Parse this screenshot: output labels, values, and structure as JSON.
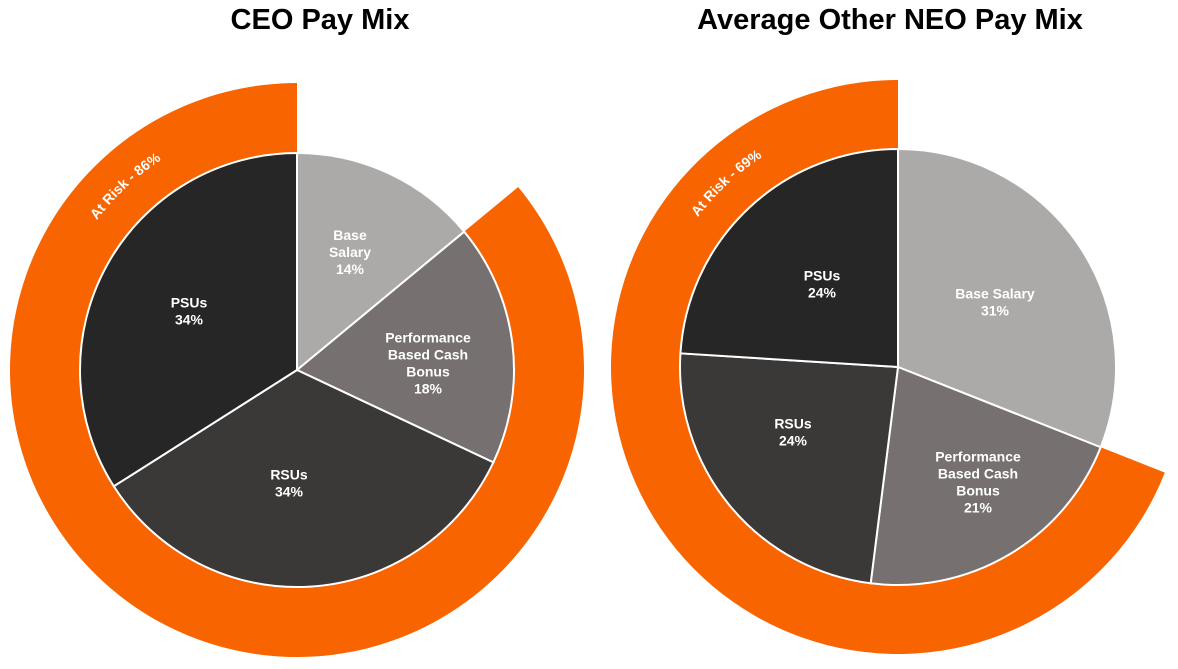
{
  "chart_data": [
    {
      "type": "pie",
      "title": "CEO Pay Mix",
      "slices": [
        {
          "label": "Base Salary",
          "label_lines": [
            "Base",
            "Salary",
            "14%"
          ],
          "value": 14,
          "color": "#acaaa9"
        },
        {
          "label": "Performance Based Cash Bonus",
          "label_lines": [
            "Performance",
            "Based Cash",
            "Bonus",
            "18%"
          ],
          "value": 18,
          "color": "#767170"
        },
        {
          "label": "RSUs",
          "label_lines": [
            "RSUs",
            "34%"
          ],
          "value": 34,
          "color": "#3b3938"
        },
        {
          "label": "PSUs",
          "label_lines": [
            "PSUs",
            "34%"
          ],
          "value": 34,
          "color": "#262626"
        }
      ],
      "at_risk": {
        "label": "At Risk - 86%",
        "value": 86,
        "color": "#f86400"
      }
    },
    {
      "type": "pie",
      "title": "Average Other NEO Pay Mix",
      "slices": [
        {
          "label": "Base Salary",
          "label_lines": [
            "Base Salary",
            "31%"
          ],
          "value": 31,
          "color": "#acaaa9"
        },
        {
          "label": "Performance Based Cash Bonus",
          "label_lines": [
            "Performance",
            "Based Cash",
            "Bonus",
            "21%"
          ],
          "value": 21,
          "color": "#767170"
        },
        {
          "label": "RSUs",
          "label_lines": [
            "RSUs",
            "24%"
          ],
          "value": 24,
          "color": "#3b3938"
        },
        {
          "label": "PSUs",
          "label_lines": [
            "PSUs",
            "24%"
          ],
          "value": 24,
          "color": "#262626"
        }
      ],
      "at_risk": {
        "label": "At Risk - 69%",
        "value": 69,
        "color": "#f86400"
      }
    }
  ]
}
